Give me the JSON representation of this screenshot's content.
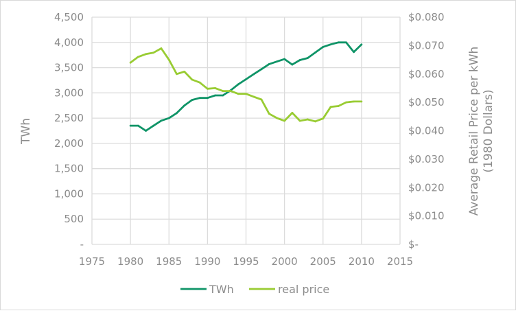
{
  "chart_data": {
    "type": "line",
    "title": "",
    "xlabel": "",
    "ylabel": "TWh",
    "y2label_line1": "Average Retail Price per kWh",
    "y2label_line2": "(1980 Dollars)",
    "xlim": [
      1975,
      2015
    ],
    "ylim": [
      0,
      4500
    ],
    "y2lim": [
      0,
      0.08
    ],
    "grid": true,
    "legend_placement": "bottom",
    "x_ticks": [
      "1975",
      "1980",
      "1985",
      "1990",
      "1995",
      "2000",
      "2005",
      "2010",
      "2015"
    ],
    "y_ticks": [
      "-",
      "500",
      "1,000",
      "1,500",
      "2,000",
      "2,500",
      "3,000",
      "3,500",
      "4,000",
      "4,500"
    ],
    "y2_ticks": [
      "$-",
      "$0.010",
      "$0.020",
      "$0.030",
      "$0.040",
      "$0.050",
      "$0.060",
      "$0.070",
      "$0.080"
    ],
    "x": [
      1980,
      1981,
      1982,
      1983,
      1984,
      1985,
      1986,
      1987,
      1988,
      1989,
      1990,
      1991,
      1992,
      1993,
      1994,
      1995,
      1996,
      1997,
      1998,
      1999,
      2000,
      2001,
      2002,
      2003,
      2004,
      2005,
      2006,
      2007,
      2008,
      2009,
      2010
    ],
    "series": [
      {
        "name": "TWh",
        "axis": "left",
        "color": "#0f9467",
        "values": [
          2350,
          2350,
          2250,
          2350,
          2450,
          2500,
          2600,
          2750,
          2860,
          2900,
          2900,
          2950,
          2950,
          3050,
          3170,
          3270,
          3370,
          3470,
          3570,
          3620,
          3670,
          3560,
          3650,
          3690,
          3800,
          3910,
          3960,
          4000,
          4000,
          3810,
          3960
        ]
      },
      {
        "name": "real price",
        "axis": "right",
        "color": "#99cc33",
        "values": [
          0.064,
          0.066,
          0.067,
          0.0675,
          0.069,
          0.065,
          0.06,
          0.0608,
          0.058,
          0.057,
          0.0548,
          0.055,
          0.054,
          0.054,
          0.053,
          0.053,
          0.052,
          0.051,
          0.046,
          0.0445,
          0.0435,
          0.0463,
          0.0435,
          0.044,
          0.0433,
          0.0443,
          0.0484,
          0.0487,
          0.05,
          0.0503,
          0.0503
        ]
      }
    ]
  }
}
